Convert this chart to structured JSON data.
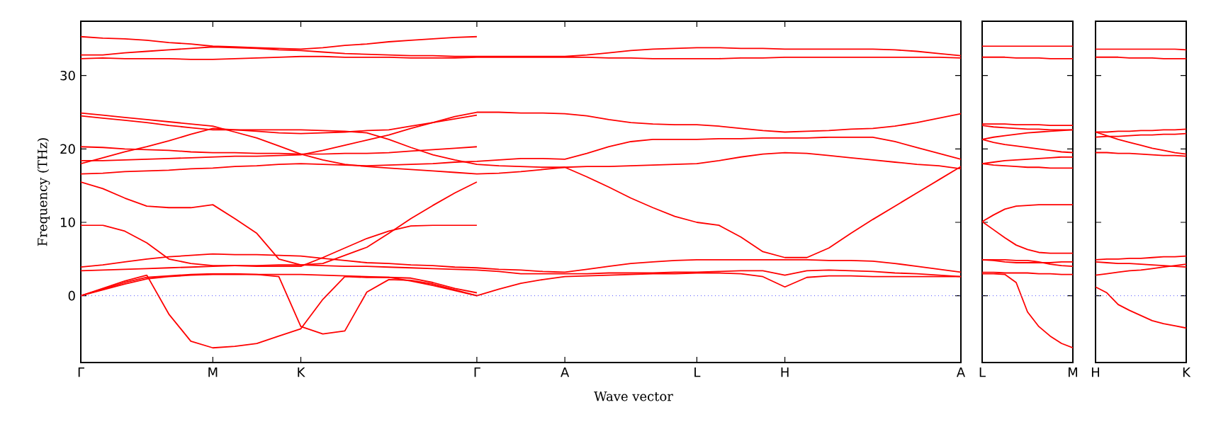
{
  "chart_data": [
    {
      "type": "line",
      "ylabel": "Frequency (THz)",
      "xlabel": "Wave vector",
      "ylim": [
        -9.1,
        37.4
      ],
      "categories": [
        "Γ",
        null,
        null,
        null,
        null,
        null,
        "M",
        null,
        null,
        null,
        "K",
        null,
        null,
        null,
        null,
        null,
        null,
        null,
        "Γ",
        null,
        null,
        null,
        "A",
        null,
        null,
        null,
        null,
        null,
        "L",
        null,
        null,
        null,
        "H",
        null,
        null,
        null,
        null,
        null,
        null,
        null,
        "A"
      ],
      "yticks": [
        0,
        10,
        20,
        30
      ],
      "ref_lines": [
        {
          "axis": "y",
          "value": 0,
          "color": "#5050ff",
          "line_style": "dotted"
        }
      ],
      "series": [
        {
          "color": "#ff0000",
          "values": [
            35.3,
            35.1,
            35.0,
            34.8,
            34.5,
            34.3,
            34.0,
            33.9,
            33.8,
            33.7,
            33.6,
            33.8,
            34.1,
            34.3,
            34.6,
            34.8,
            35.0,
            35.2,
            35.3,
            null,
            null,
            null,
            null,
            null,
            null,
            null,
            null,
            null,
            null,
            null,
            null,
            null,
            null,
            null,
            null,
            null,
            null,
            null,
            null,
            null,
            null
          ]
        },
        {
          "color": "#ff0000",
          "values": [
            32.8,
            32.8,
            33.1,
            33.3,
            33.5,
            33.7,
            33.9,
            33.8,
            33.7,
            33.5,
            33.4,
            33.2,
            33.0,
            32.9,
            32.8,
            32.7,
            32.7,
            32.6,
            32.6,
            32.6,
            32.6,
            32.6,
            32.6,
            32.8,
            33.1,
            33.4,
            33.6,
            33.7,
            33.8,
            33.8,
            33.7,
            33.7,
            33.6,
            33.6,
            33.6,
            33.6,
            33.6,
            33.5,
            33.3,
            33.0,
            32.7
          ]
        },
        {
          "color": "#ff0000",
          "values": [
            32.3,
            32.4,
            32.3,
            32.3,
            32.3,
            32.2,
            32.2,
            32.3,
            32.4,
            32.5,
            32.6,
            32.6,
            32.5,
            32.5,
            32.5,
            32.4,
            32.4,
            32.4,
            32.5,
            32.5,
            32.5,
            32.5,
            32.5,
            32.5,
            32.4,
            32.4,
            32.3,
            32.3,
            32.3,
            32.3,
            32.4,
            32.4,
            32.5,
            32.5,
            32.5,
            32.5,
            32.5,
            32.5,
            32.5,
            32.5,
            32.4
          ]
        },
        {
          "color": "#ff0000",
          "values": [
            24.9,
            24.6,
            24.3,
            24.0,
            23.7,
            23.4,
            23.1,
            22.3,
            21.5,
            20.4,
            19.3,
            18.5,
            17.9,
            17.6,
            17.4,
            17.2,
            17.0,
            16.8,
            16.6,
            16.7,
            16.9,
            17.2,
            17.5,
            16.2,
            14.8,
            13.3,
            12.0,
            10.8,
            10.0,
            9.6,
            8.0,
            6.0,
            5.2,
            5.2,
            6.5,
            8.5,
            10.4,
            12.2,
            14.0,
            15.8,
            17.6
          ]
        },
        {
          "color": "#ff0000",
          "values": [
            24.5,
            24.2,
            23.9,
            23.6,
            23.2,
            22.9,
            22.6,
            22.6,
            22.6,
            22.6,
            22.6,
            22.5,
            22.4,
            22.2,
            21.3,
            20.2,
            19.2,
            18.5,
            17.9,
            17.7,
            17.6,
            17.5,
            17.5,
            17.6,
            17.6,
            17.7,
            17.8,
            17.9,
            18.0,
            18.4,
            18.9,
            19.3,
            19.5,
            19.4,
            19.1,
            18.8,
            18.5,
            18.2,
            17.9,
            17.7,
            17.3
          ]
        },
        {
          "color": "#ff0000",
          "values": [
            20.3,
            20.2,
            20.0,
            19.9,
            19.8,
            19.6,
            19.5,
            19.5,
            19.4,
            19.4,
            19.3,
            19.3,
            19.4,
            19.4,
            19.5,
            19.7,
            19.9,
            20.1,
            20.3,
            null,
            null,
            null,
            null,
            null,
            null,
            null,
            null,
            null,
            null,
            null,
            null,
            null,
            null,
            null,
            null,
            null,
            null,
            null,
            null,
            null,
            null
          ]
        },
        {
          "color": "#ff0000",
          "values": [
            18.0,
            18.8,
            19.6,
            20.3,
            21.1,
            22.0,
            22.8,
            22.6,
            22.4,
            22.2,
            22.1,
            22.2,
            22.3,
            22.5,
            22.6,
            23.1,
            23.6,
            24.1,
            24.6,
            null,
            null,
            null,
            null,
            null,
            null,
            null,
            null,
            null,
            null,
            null,
            null,
            null,
            null,
            null,
            null,
            null,
            null,
            null,
            null,
            null,
            null
          ]
        },
        {
          "color": "#ff0000",
          "values": [
            18.4,
            18.4,
            18.5,
            18.6,
            18.7,
            18.8,
            18.9,
            19.0,
            19.0,
            19.1,
            19.2,
            19.8,
            20.5,
            21.2,
            21.9,
            22.8,
            23.6,
            24.4,
            25.0,
            25.0,
            24.9,
            24.9,
            24.8,
            24.5,
            24.0,
            23.6,
            23.4,
            23.3,
            23.3,
            23.1,
            22.8,
            22.5,
            22.3,
            22.4,
            22.5,
            22.7,
            22.8,
            23.1,
            23.6,
            24.2,
            24.8
          ]
        },
        {
          "color": "#ff0000",
          "values": [
            16.6,
            16.7,
            16.9,
            17.0,
            17.1,
            17.3,
            17.4,
            17.6,
            17.7,
            17.9,
            18.0,
            17.9,
            17.8,
            17.7,
            17.8,
            17.9,
            18.0,
            18.2,
            18.3,
            18.5,
            18.7,
            18.7,
            18.6,
            19.4,
            20.3,
            21.0,
            21.3,
            21.3,
            21.3,
            21.4,
            21.4,
            21.5,
            21.5,
            21.5,
            21.6,
            21.6,
            21.6,
            21.0,
            20.2,
            19.4,
            18.6
          ]
        },
        {
          "color": "#ff0000",
          "values": [
            15.5,
            14.6,
            13.3,
            12.2,
            12.0,
            12.0,
            12.4,
            10.5,
            8.5,
            5.0,
            4.2,
            4.4,
            5.5,
            6.6,
            8.5,
            10.5,
            12.3,
            14.0,
            15.5,
            null,
            null,
            null,
            null,
            null,
            null,
            null,
            null,
            null,
            null,
            null,
            null,
            null,
            null,
            null,
            null,
            null,
            null,
            null,
            null,
            null,
            null
          ]
        },
        {
          "color": "#ff0000",
          "values": [
            9.6,
            9.6,
            8.8,
            7.2,
            5.0,
            4.4,
            4.1,
            4.1,
            4.0,
            4.0,
            4.0,
            5.2,
            6.5,
            7.8,
            8.8,
            9.5,
            9.6,
            9.6,
            9.6,
            null,
            null,
            null,
            null,
            null,
            null,
            null,
            null,
            null,
            null,
            null,
            null,
            null,
            null,
            null,
            null,
            null,
            null,
            null,
            null,
            null,
            null
          ]
        },
        {
          "color": "#ff0000",
          "values": [
            3.9,
            4.2,
            4.6,
            5.0,
            5.3,
            5.5,
            5.7,
            5.6,
            5.6,
            5.5,
            5.4,
            5.1,
            4.8,
            4.5,
            4.4,
            4.2,
            4.1,
            3.9,
            3.8,
            3.6,
            3.5,
            3.3,
            3.2,
            3.6,
            4.0,
            4.4,
            4.6,
            4.8,
            4.9,
            4.9,
            4.9,
            4.9,
            4.9,
            4.9,
            4.8,
            4.8,
            4.7,
            4.4,
            4.0,
            3.6,
            3.2
          ]
        },
        {
          "color": "#ff0000",
          "values": [
            3.4,
            3.5,
            3.6,
            3.7,
            3.8,
            3.9,
            4.0,
            4.1,
            4.1,
            4.2,
            4.2,
            4.1,
            4.0,
            4.0,
            3.9,
            3.8,
            3.7,
            3.6,
            3.5,
            3.3,
            3.0,
            3.0,
            3.0,
            3.0,
            3.1,
            3.1,
            3.1,
            3.2,
            3.2,
            3.3,
            3.4,
            3.4,
            2.8,
            3.4,
            3.5,
            3.4,
            3.3,
            3.1,
            3.0,
            2.8,
            2.6
          ]
        },
        {
          "color": "#ff0000",
          "values": [
            0,
            0.8,
            1.6,
            2.3,
            2.6,
            2.8,
            2.9,
            2.9,
            2.9,
            2.9,
            2.9,
            2.8,
            2.7,
            2.6,
            2.5,
            2.0,
            1.4,
            0.7,
            0,
            0.9,
            1.7,
            2.2,
            2.6,
            2.7,
            2.8,
            2.9,
            3.0,
            3.0,
            3.1,
            3.1,
            3.0,
            2.6,
            1.2,
            2.5,
            2.7,
            2.7,
            2.6,
            2.6,
            2.6,
            2.6,
            2.6
          ]
        },
        {
          "color": "#ff0000",
          "values": [
            0,
            1.0,
            2.0,
            2.8,
            -2.5,
            -6.2,
            -7.1,
            -6.9,
            -6.5,
            -5.5,
            -4.5,
            -0.5,
            2.6,
            2.5,
            2.5,
            2.4,
            1.8,
            1.0,
            0.4,
            null,
            null,
            null,
            null,
            null,
            null,
            null,
            null,
            null,
            null,
            null,
            null,
            null,
            null,
            null,
            null,
            null,
            null,
            null,
            null,
            null,
            null
          ]
        },
        {
          "color": "#ff0000",
          "values": [
            0,
            0.9,
            1.8,
            2.5,
            2.7,
            2.9,
            3.0,
            3.0,
            2.9,
            2.6,
            -4.2,
            -5.2,
            -4.8,
            0.5,
            2.2,
            2.1,
            1.6,
            0.8,
            0,
            null,
            null,
            null,
            null,
            null,
            null,
            null,
            null,
            null,
            null,
            null,
            null,
            null,
            null,
            null,
            null,
            null,
            null,
            null,
            null,
            null,
            null
          ]
        }
      ]
    },
    {
      "type": "line",
      "ylim": [
        -9.1,
        37.4
      ],
      "tick_labels": "x",
      "categories": [
        "L",
        null,
        null,
        null,
        null,
        null,
        null,
        null,
        "M"
      ],
      "yticks": [
        0,
        10,
        20,
        30
      ],
      "ref_lines": [
        {
          "axis": "y",
          "value": 0,
          "color": "#5050ff",
          "line_style": "dotted"
        }
      ],
      "series": [
        {
          "color": "#ff0000",
          "values": [
            34.0,
            34.0,
            34.0,
            34.0,
            34.0,
            34.0,
            34.0,
            34.0,
            34.0
          ]
        },
        {
          "color": "#ff0000",
          "values": [
            32.5,
            32.5,
            32.5,
            32.4,
            32.4,
            32.4,
            32.3,
            32.3,
            32.3
          ]
        },
        {
          "color": "#ff0000",
          "values": [
            23.4,
            23.4,
            23.4,
            23.3,
            23.3,
            23.3,
            23.2,
            23.2,
            23.2
          ]
        },
        {
          "color": "#ff0000",
          "values": [
            23.2,
            23.0,
            22.9,
            22.8,
            22.7,
            22.7,
            22.6,
            22.6,
            22.6
          ]
        },
        {
          "color": "#ff0000",
          "values": [
            21.3,
            21.6,
            21.8,
            22.0,
            22.2,
            22.3,
            22.4,
            22.5,
            22.6
          ]
        },
        {
          "color": "#ff0000",
          "values": [
            21.3,
            20.9,
            20.6,
            20.4,
            20.2,
            20.0,
            19.8,
            19.6,
            19.5
          ]
        },
        {
          "color": "#ff0000",
          "values": [
            18.0,
            18.2,
            18.4,
            18.5,
            18.6,
            18.7,
            18.8,
            18.9,
            18.9
          ]
        },
        {
          "color": "#ff0000",
          "values": [
            18.0,
            17.8,
            17.7,
            17.6,
            17.5,
            17.5,
            17.4,
            17.4,
            17.4
          ]
        },
        {
          "color": "#ff0000",
          "values": [
            10.1,
            11.0,
            11.8,
            12.2,
            12.3,
            12.4,
            12.4,
            12.4,
            12.4
          ]
        },
        {
          "color": "#ff0000",
          "values": [
            10.1,
            9.0,
            7.9,
            6.9,
            6.3,
            5.9,
            5.8,
            5.8,
            5.8
          ]
        },
        {
          "color": "#ff0000",
          "values": [
            4.9,
            4.9,
            4.9,
            4.8,
            4.8,
            4.6,
            4.3,
            4.1,
            4.0
          ]
        },
        {
          "color": "#ff0000",
          "values": [
            4.9,
            4.8,
            4.6,
            4.5,
            4.5,
            4.5,
            4.5,
            4.6,
            4.6
          ]
        },
        {
          "color": "#ff0000",
          "values": [
            3.2,
            3.2,
            3.1,
            3.1,
            3.1,
            3.0,
            3.0,
            2.9,
            2.9
          ]
        },
        {
          "color": "#ff0000",
          "values": [
            3.0,
            3.0,
            2.9,
            1.8,
            -2.2,
            -4.2,
            -5.5,
            -6.5,
            -7.1
          ]
        }
      ]
    },
    {
      "type": "line",
      "ylim": [
        -9.1,
        37.4
      ],
      "tick_labels": "x",
      "categories": [
        "H",
        null,
        null,
        null,
        null,
        null,
        null,
        null,
        "K"
      ],
      "yticks": [
        0,
        10,
        20,
        30
      ],
      "ref_lines": [
        {
          "axis": "y",
          "value": 0,
          "color": "#5050ff",
          "line_style": "dotted"
        }
      ],
      "series": [
        {
          "color": "#ff0000",
          "values": [
            33.6,
            33.6,
            33.6,
            33.6,
            33.6,
            33.6,
            33.6,
            33.6,
            33.5
          ]
        },
        {
          "color": "#ff0000",
          "values": [
            32.5,
            32.5,
            32.5,
            32.4,
            32.4,
            32.4,
            32.3,
            32.3,
            32.3
          ]
        },
        {
          "color": "#ff0000",
          "values": [
            22.3,
            22.3,
            22.4,
            22.4,
            22.5,
            22.5,
            22.6,
            22.6,
            22.7
          ]
        },
        {
          "color": "#ff0000",
          "values": [
            21.6,
            21.7,
            21.7,
            21.8,
            21.9,
            21.9,
            22.0,
            22.0,
            22.1
          ]
        },
        {
          "color": "#ff0000",
          "values": [
            22.3,
            21.8,
            21.3,
            20.9,
            20.5,
            20.1,
            19.8,
            19.5,
            19.3
          ]
        },
        {
          "color": "#ff0000",
          "values": [
            19.5,
            19.5,
            19.4,
            19.4,
            19.3,
            19.2,
            19.1,
            19.1,
            19.0
          ]
        },
        {
          "color": "#ff0000",
          "values": [
            4.9,
            5.0,
            5.0,
            5.1,
            5.1,
            5.2,
            5.3,
            5.3,
            5.4
          ]
        },
        {
          "color": "#ff0000",
          "values": [
            4.6,
            4.5,
            4.4,
            4.4,
            4.3,
            4.2,
            4.1,
            4.0,
            3.9
          ]
        },
        {
          "color": "#ff0000",
          "values": [
            2.8,
            3.0,
            3.2,
            3.4,
            3.5,
            3.7,
            3.9,
            4.1,
            4.3
          ]
        },
        {
          "color": "#ff0000",
          "values": [
            1.2,
            0.4,
            -1.2,
            -2.0,
            -2.7,
            -3.4,
            -3.8,
            -4.1,
            -4.4
          ]
        }
      ]
    }
  ]
}
